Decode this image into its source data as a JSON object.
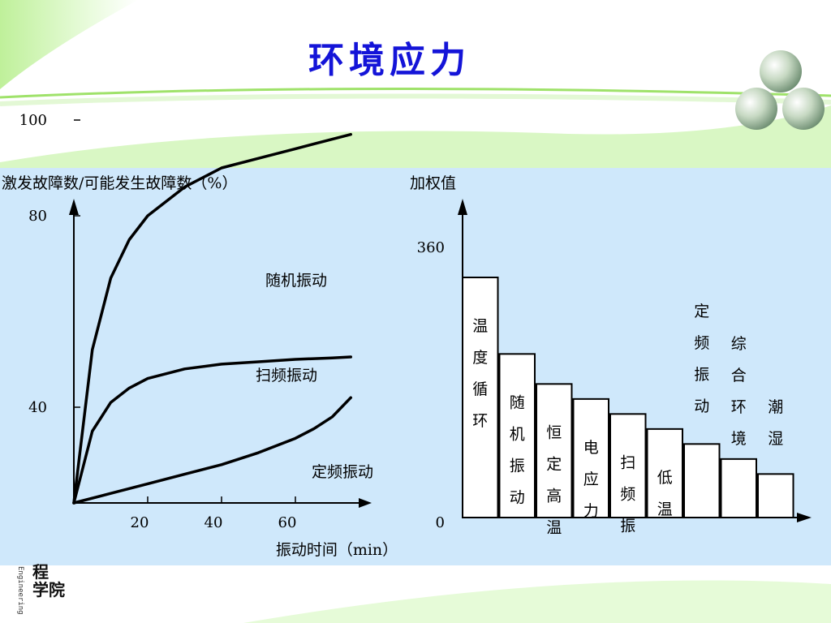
{
  "slide": {
    "title": "环境应力"
  },
  "logo": {
    "vertical_text": "Engineering",
    "cn_lines": [
      "程",
      "学院"
    ]
  },
  "colors": {
    "title": "#1414d8",
    "panel": "#cfe8fb",
    "accent_green": "#9fe26a"
  },
  "chart_data": [
    {
      "type": "line",
      "ylabel": "激发故障数/可能发生故障数（%）",
      "xlabel": "振动时间（min）",
      "x_ticks": [
        20,
        40,
        60
      ],
      "y_ticks": [
        100,
        80,
        40
      ],
      "xlim": [
        0,
        80
      ],
      "ylim": [
        20,
        120
      ],
      "series": [
        {
          "name": "随机振动",
          "x": [
            0,
            5,
            10,
            15,
            20,
            30,
            40,
            50,
            60,
            70,
            75
          ],
          "y": [
            20,
            52,
            67,
            75,
            80,
            86,
            90,
            92,
            94,
            96,
            97
          ]
        },
        {
          "name": "扫频振动",
          "x": [
            0,
            5,
            10,
            15,
            20,
            30,
            40,
            50,
            60,
            70,
            75
          ],
          "y": [
            20,
            35,
            41,
            44,
            46,
            48,
            49,
            49.5,
            50,
            50.3,
            50.5
          ]
        },
        {
          "name": "定频振动",
          "x": [
            0,
            10,
            20,
            30,
            40,
            50,
            60,
            65,
            70,
            75
          ],
          "y": [
            20,
            22,
            24,
            26,
            28,
            30.5,
            33.5,
            35.5,
            38,
            42
          ]
        }
      ]
    },
    {
      "type": "bar",
      "ylabel": "加权值",
      "y_ticks": [
        360,
        0
      ],
      "ylim": [
        0,
        400
      ],
      "categories": [
        "温度循环",
        "随机振动",
        "恒定高温",
        "电应力",
        "扫频振",
        "低温",
        "定频振动",
        "综合环境",
        "潮湿"
      ],
      "values": [
        320,
        218,
        178,
        158,
        138,
        118,
        98,
        78,
        58
      ]
    }
  ]
}
